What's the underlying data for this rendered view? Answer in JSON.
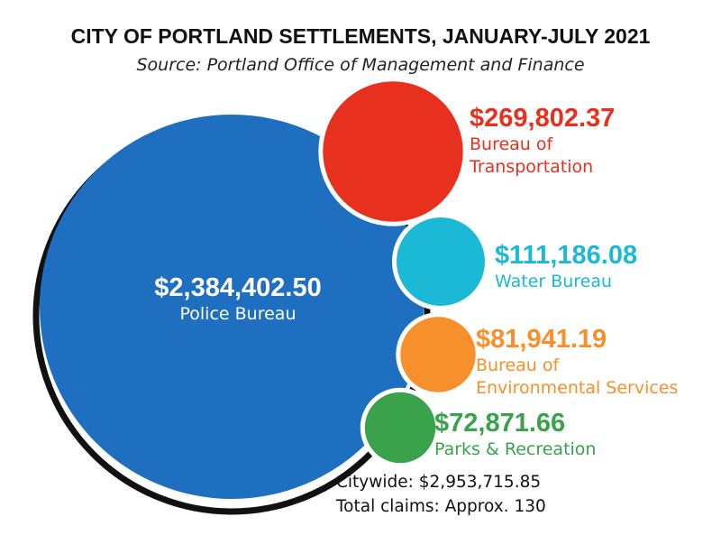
{
  "chart_data": {
    "type": "bubble",
    "title": "CITY OF PORTLAND SETTLEMENTS, JANUARY-JULY 2021",
    "subtitle": "Source: Portland Office of Management and Finance",
    "unit": "USD",
    "categories": [
      "Police Bureau",
      "Bureau of Transportation",
      "Water Bureau",
      "Bureau of Environmental Services",
      "Parks & Recreation"
    ],
    "series": [
      {
        "values": [
          2384402.5,
          269802.37,
          111186.08,
          81941.19,
          72871.66
        ],
        "value_labels": [
          "$2,384,402.50",
          "$269,802.37",
          "$111,186.08",
          "$81,941.19",
          "$72,871.66"
        ],
        "name_lines": [
          [
            "Police Bureau"
          ],
          [
            "Bureau of",
            "Transportation"
          ],
          [
            "Water Bureau"
          ],
          [
            "Bureau of",
            "Environmental Services"
          ],
          [
            "Parks & Recreation"
          ]
        ],
        "colors": [
          "#1e6fc0",
          "#e8301f",
          "#1cb9d6",
          "#f7902a",
          "#3aa24a"
        ]
      }
    ],
    "summary": [
      "Citywide: $2,953,715.85",
      "Total claims: Approx. 130"
    ]
  }
}
